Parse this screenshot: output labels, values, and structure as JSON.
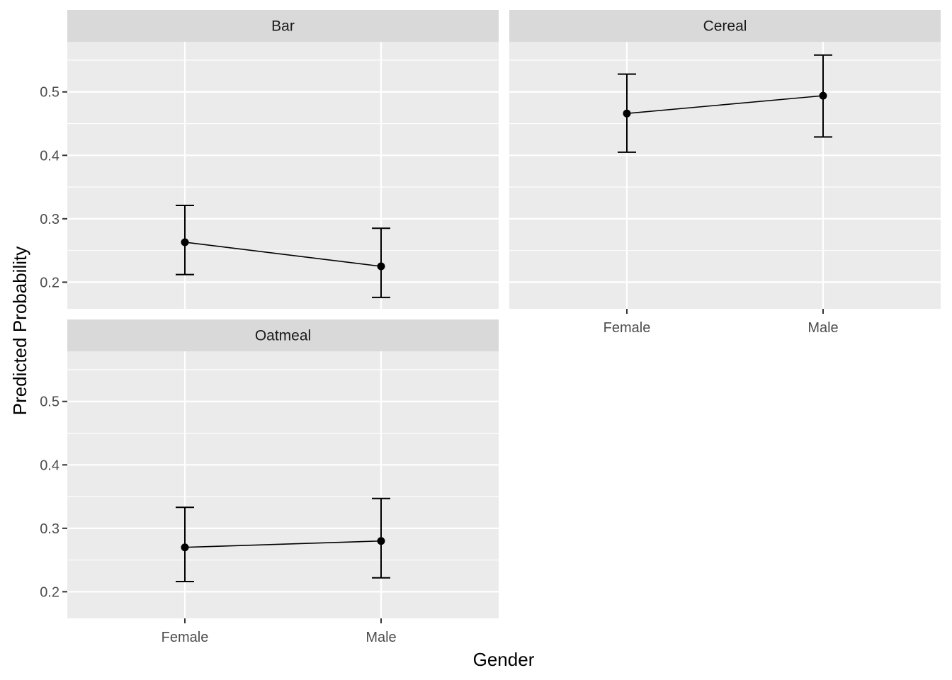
{
  "chart_data": {
    "type": "line",
    "layout": "facet_wrap",
    "xlabel": "Gender",
    "ylabel": "Predicted Probability",
    "categories": [
      "Female",
      "Male"
    ],
    "ylim": [
      0.158,
      0.579
    ],
    "y_ticks": [
      0.2,
      0.3,
      0.4,
      0.5
    ],
    "y_tick_labels": [
      "0.2",
      "0.3",
      "0.4",
      "0.5"
    ],
    "grid": true,
    "error_bars": true,
    "facets": [
      {
        "name": "Bar",
        "values": [
          0.263,
          0.225
        ],
        "lower": [
          0.212,
          0.176
        ],
        "upper": [
          0.321,
          0.285
        ]
      },
      {
        "name": "Cereal",
        "values": [
          0.466,
          0.494
        ],
        "lower": [
          0.405,
          0.429
        ],
        "upper": [
          0.528,
          0.558
        ]
      },
      {
        "name": "Oatmeal",
        "values": [
          0.27,
          0.28
        ],
        "lower": [
          0.216,
          0.222
        ],
        "upper": [
          0.333,
          0.347
        ]
      }
    ]
  }
}
